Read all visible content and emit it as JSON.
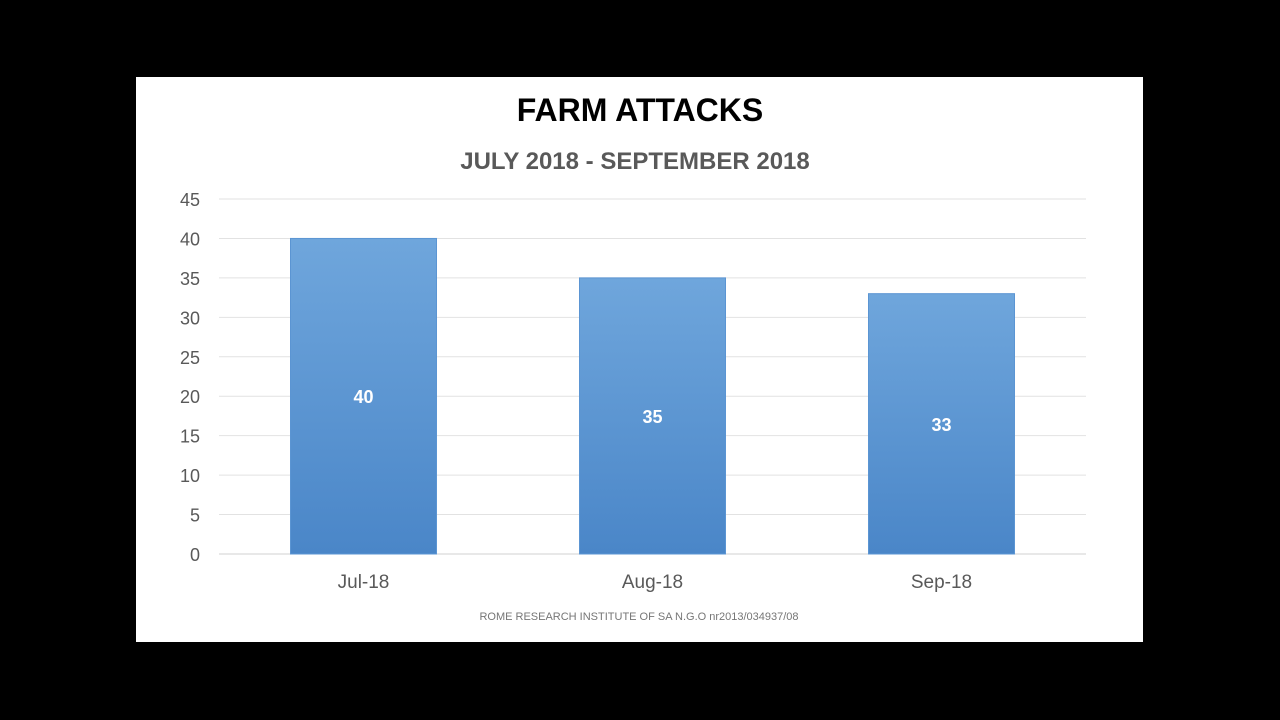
{
  "chart_data": {
    "type": "bar",
    "title": "FARM ATTACKS",
    "subtitle": "JULY 2018 - SEPTEMBER 2018",
    "categories": [
      "Jul-18",
      "Aug-18",
      "Sep-18"
    ],
    "values": [
      40,
      35,
      33
    ],
    "data_labels": [
      "40",
      "35",
      "33"
    ],
    "ylim": [
      0,
      45
    ],
    "yticks": [
      0,
      5,
      10,
      15,
      20,
      25,
      30,
      35,
      40,
      45
    ],
    "grid": true,
    "legend": "none",
    "bar_color_top": "#6fa6dc",
    "bar_color_bottom": "#4a86c8",
    "source": "ROME RESEARCH INSTITUTE OF SA N.G.O nr2013/034937/08"
  }
}
